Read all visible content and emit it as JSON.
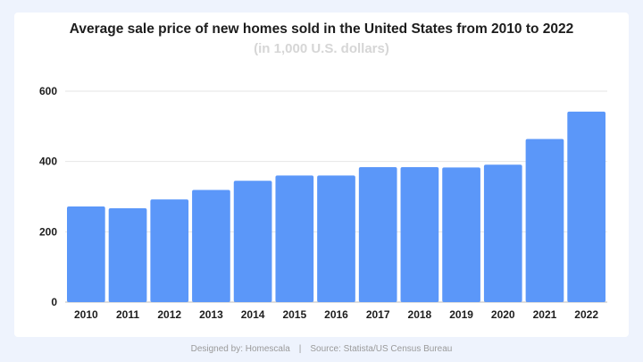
{
  "chart_data": {
    "type": "bar",
    "title": "Average sale price of new homes sold in the United States from 2010 to 2022",
    "subtitle": "(in 1,000 U.S. dollars)",
    "xlabel": "",
    "ylabel": "",
    "categories": [
      "2010",
      "2011",
      "2012",
      "2013",
      "2014",
      "2015",
      "2016",
      "2017",
      "2018",
      "2019",
      "2020",
      "2021",
      "2022"
    ],
    "values": [
      272,
      267,
      292,
      319,
      345,
      360,
      360,
      384,
      384,
      383,
      391,
      464,
      542
    ],
    "ylim": [
      0,
      600
    ],
    "yticks": [
      0,
      200,
      400,
      600
    ],
    "grid": true,
    "bar_color": "#5b97f9"
  },
  "footer": {
    "designer": "Designed by: Homescala",
    "separator": "|",
    "source": "Source: Statista/US Census Bureau"
  }
}
